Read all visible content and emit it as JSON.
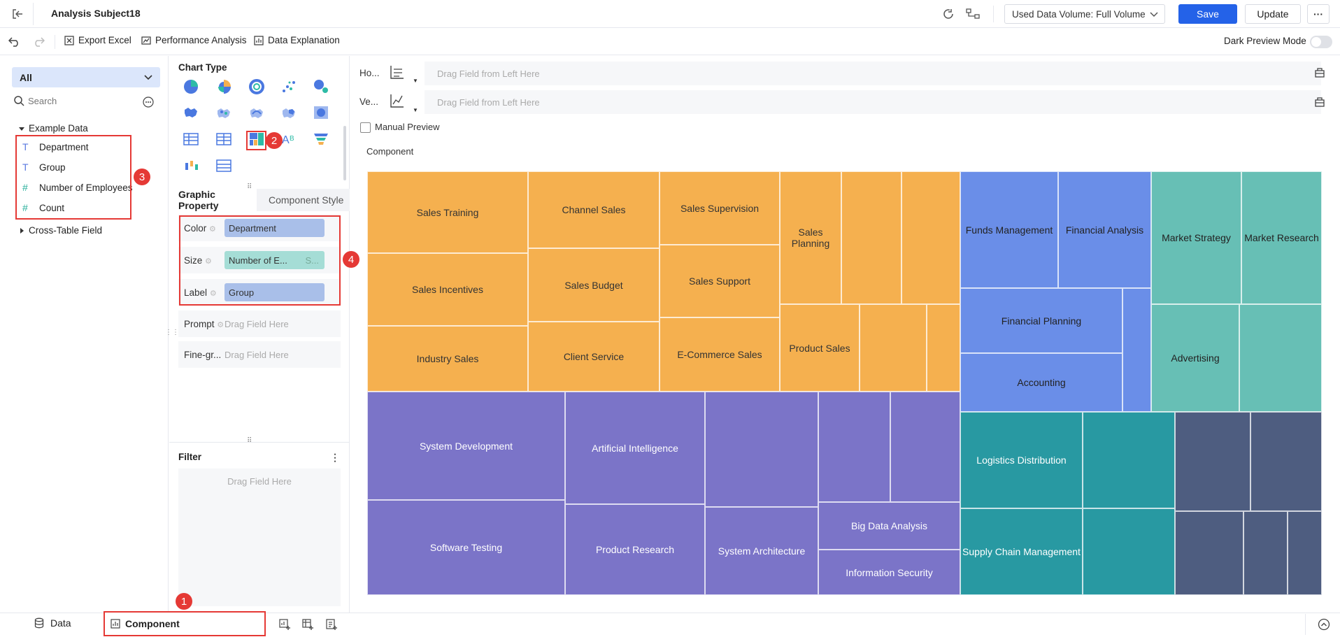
{
  "header": {
    "title": "Analysis Subject18",
    "data_volume": "Used Data Volume: Full Volume",
    "save_label": "Save",
    "update_label": "Update",
    "more_label": "···"
  },
  "toolbar": {
    "export_excel": "Export Excel",
    "performance": "Performance Analysis",
    "data_explanation": "Data Explanation",
    "dark_preview": "Dark Preview Mode"
  },
  "left": {
    "scope_select": "All",
    "search_placeholder": "Search",
    "folder_example": "Example Data",
    "fields": [
      {
        "label": "Department",
        "type": "text"
      },
      {
        "label": "Group",
        "type": "text"
      },
      {
        "label": "Number of Employees",
        "type": "number"
      },
      {
        "label": "Count",
        "type": "number"
      }
    ],
    "folder_cross": "Cross-Table Field"
  },
  "chart_type": {
    "title": "Chart Type"
  },
  "tabs": {
    "graphic_property": "Graphic Property",
    "component_style": "Component Style"
  },
  "properties": {
    "color_label": "Color",
    "color_value": "Department",
    "size_label": "Size",
    "size_value": "Number of E...",
    "size_suffix": "S...",
    "label_label": "Label",
    "label_value": "Group",
    "prompt_label": "Prompt",
    "prompt_placeholder": "Drag Field Here",
    "finegr_label": "Fine-gr...",
    "finegr_placeholder": "Drag Field Here"
  },
  "filter": {
    "title": "Filter",
    "placeholder": "Drag Field Here"
  },
  "axes": {
    "horizontal_label": "Ho...",
    "vertical_label": "Ve...",
    "placeholder_h": "Drag Field from Left Here",
    "placeholder_v": "Drag Field from Left Here",
    "manual_preview": "Manual Preview",
    "component_label": "Component"
  },
  "colors": {
    "sales": "#f5b04f",
    "rnd": "#7b74c8",
    "finance": "#6a8ee8",
    "marketing": "#67bfb5",
    "logistics": "#2899a2",
    "other": "#4e5d80",
    "accent": "#2462e8",
    "red_marker": "#e53935"
  },
  "treemap": {
    "labels": {
      "sales_training": "Sales Training",
      "channel_sales": "Channel Sales",
      "sales_supervision": "Sales Supervision",
      "sales_planning": "Sales Planning",
      "sales_incentives": "Sales Incentives",
      "sales_budget": "Sales Budget",
      "sales_support": "Sales Support",
      "industry_sales": "Industry Sales",
      "client_service": "Client Service",
      "ecommerce_sales": "E-Commerce Sales",
      "product_sales": "Product Sales",
      "funds_management": "Funds Management",
      "financial_analysis": "Financial Analysis",
      "financial_planning": "Financial Planning",
      "accounting": "Accounting",
      "market_strategy": "Market Strategy",
      "market_research": "Market Research",
      "advertising": "Advertising",
      "system_development": "System Development",
      "artificial_intelligence": "Artificial Intelligence",
      "software_testing": "Software Testing",
      "product_research": "Product Research",
      "system_architecture": "System Architecture",
      "big_data_analysis": "Big Data Analysis",
      "information_security": "Information Security",
      "logistics_distribution": "Logistics Distribution",
      "supply_chain_management": "Supply Chain Management"
    }
  },
  "bottom": {
    "data_tab": "Data",
    "component_tab": "Component"
  },
  "markers": [
    "1",
    "2",
    "3",
    "4"
  ]
}
